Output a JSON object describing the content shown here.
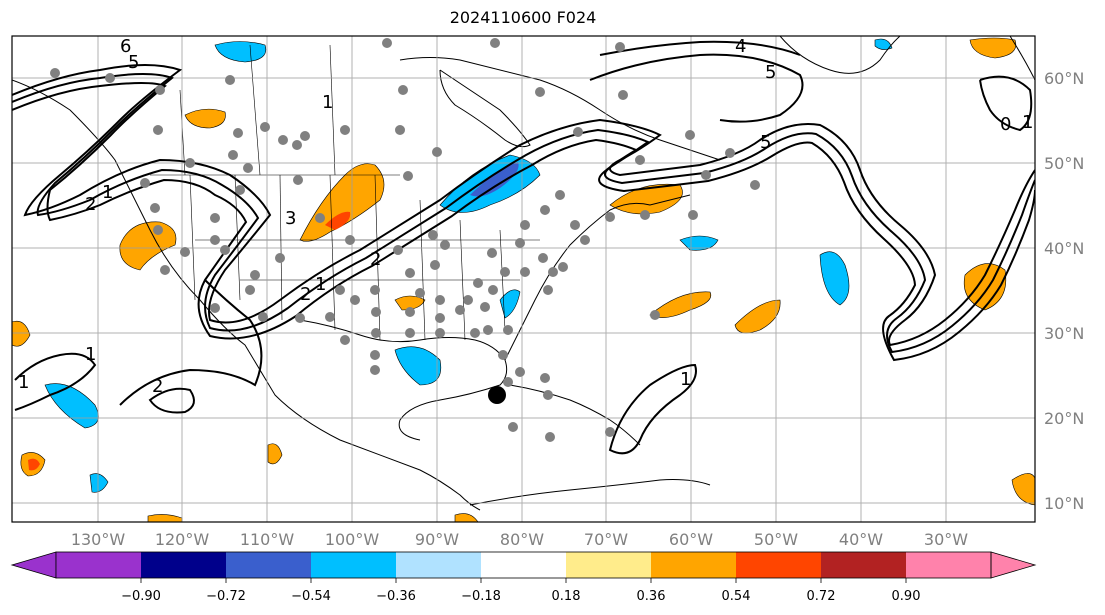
{
  "title": "2024110600 F024",
  "map": {
    "lon_labels": [
      "130°W",
      "120°W",
      "110°W",
      "100°W",
      "90°W",
      "80°W",
      "70°W",
      "60°W",
      "50°W",
      "40°W",
      "30°W"
    ],
    "lat_labels": [
      "60°N",
      "50°N",
      "40°N",
      "30°N",
      "20°N",
      "10°N"
    ],
    "contour_labels": [
      "6",
      "5",
      "4",
      "5",
      "1",
      "2",
      "1",
      "1",
      "2",
      "3",
      "2",
      "1",
      "2",
      "1",
      "1",
      "5",
      "0",
      "1"
    ],
    "colors": {
      "ocean": "#ffffff",
      "coast": "#000000",
      "gridline": "#9e9e9e",
      "station": "#808080"
    }
  },
  "colorbar": {
    "tick_labels": [
      "−0.90",
      "−0.72",
      "−0.54",
      "−0.36",
      "−0.18",
      "0.18",
      "0.36",
      "0.54",
      "0.72",
      "0.90"
    ],
    "colors": [
      "#9a32cd",
      "#00008b",
      "#3a5fcd",
      "#00bfff",
      "#b0e2ff",
      "#ffffff",
      "#ffec8b",
      "#ffa500",
      "#ff4500",
      "#b22222",
      "#ff82ab"
    ]
  }
}
